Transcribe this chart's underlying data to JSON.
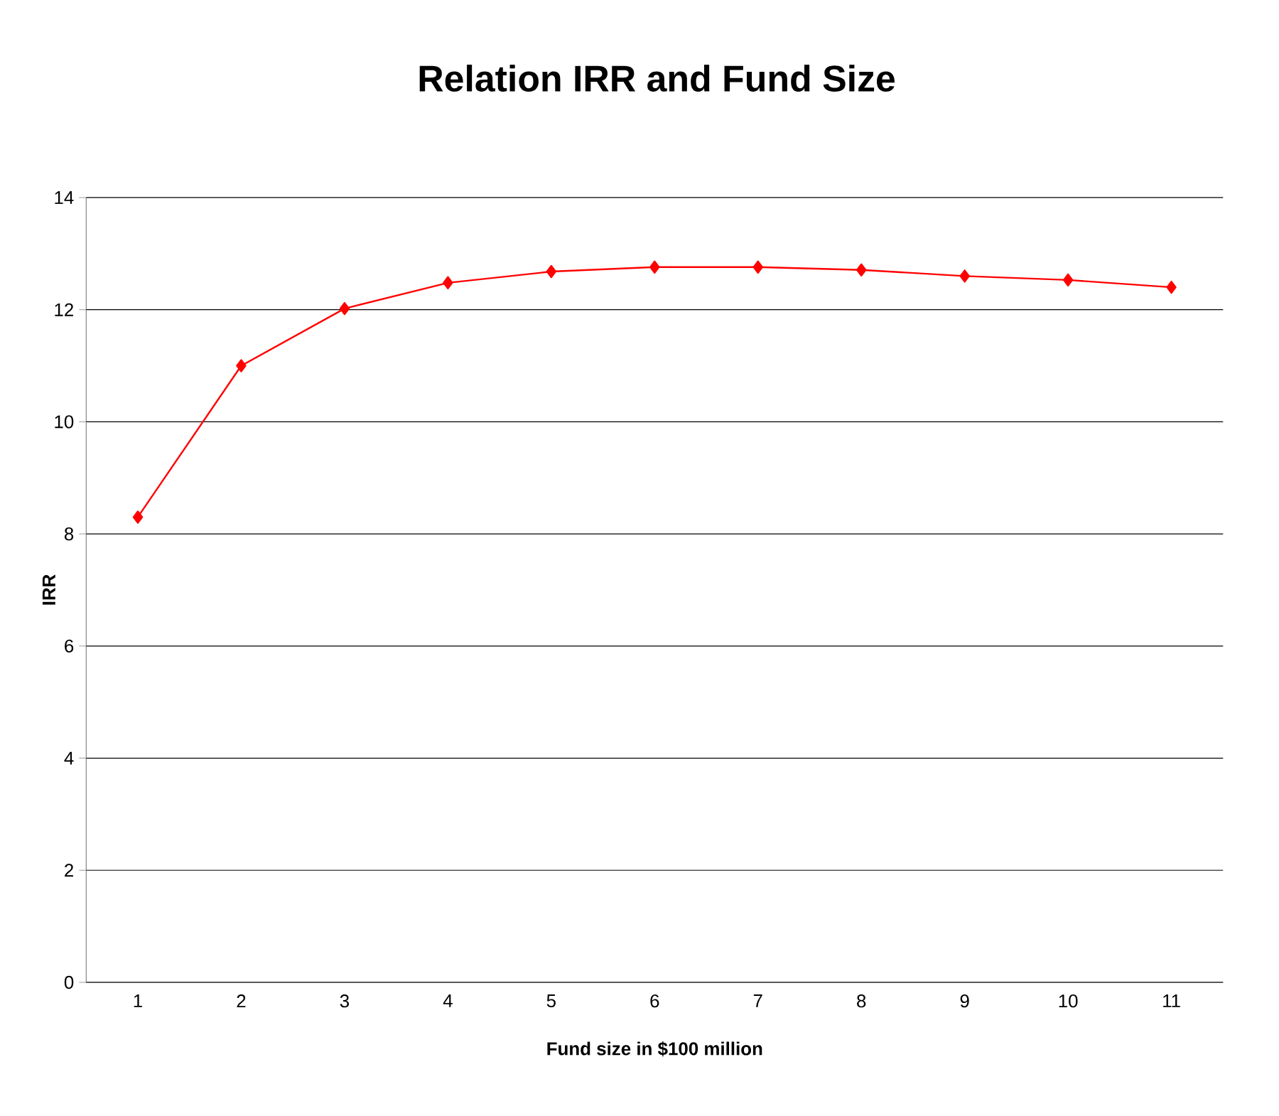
{
  "chart_data": {
    "type": "line",
    "title": "Relation IRR and Fund Size",
    "xlabel": "Fund size in $100 million",
    "ylabel": "IRR",
    "categories": [
      "1",
      "2",
      "3",
      "4",
      "5",
      "6",
      "7",
      "8",
      "9",
      "10",
      "11"
    ],
    "series": [
      {
        "color": "#ff0000",
        "values": [
          8.3,
          11.0,
          12.02,
          12.48,
          12.68,
          12.76,
          12.76,
          12.71,
          12.6,
          12.53,
          12.4
        ]
      }
    ],
    "ylim": [
      0,
      14
    ],
    "yticks": [
      0,
      2,
      4,
      6,
      8,
      10,
      12,
      14
    ],
    "grid": "y",
    "marker": "diamond",
    "line_style": "solid"
  }
}
